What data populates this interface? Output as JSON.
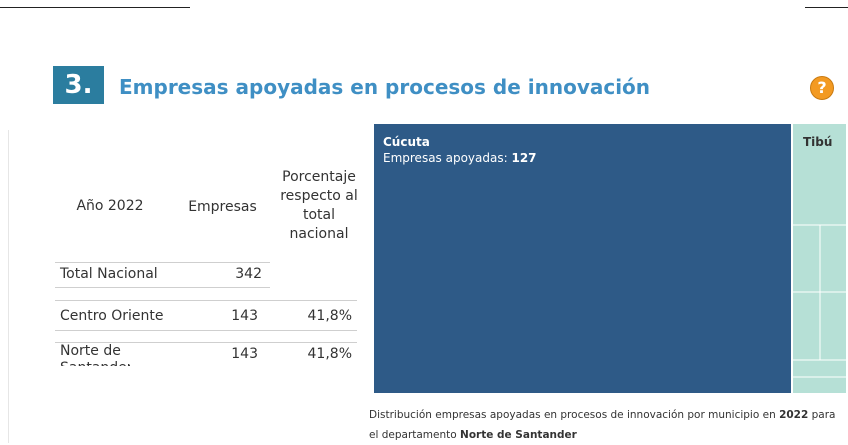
{
  "header": {
    "number": "3.",
    "title": "Empresas apoyadas en procesos de innovación"
  },
  "help_icon": "?",
  "table": {
    "headers": [
      "Año 2022",
      "Empresas",
      "Porcentaje respecto al total nacional"
    ],
    "rows": [
      {
        "label": "Total Nacional",
        "empresas": 342
      },
      {
        "label": "Centro Oriente",
        "empresas": 143,
        "porcentaje": "41,8%"
      },
      {
        "label": "Norte de Santander",
        "empresas": 143,
        "porcentaje": "41,8%"
      }
    ]
  },
  "treemap": {
    "tiles": [
      {
        "name": "Cúcuta",
        "value_label": "Empresas apoyadas:",
        "value": 127
      },
      {
        "name": "Tibú"
      }
    ]
  },
  "caption": {
    "parts": [
      "Distribución empresas apoyadas en procesos de innovación por municipio en ",
      "2022",
      " para el departamento ",
      "Norte de Santander"
    ]
  }
}
